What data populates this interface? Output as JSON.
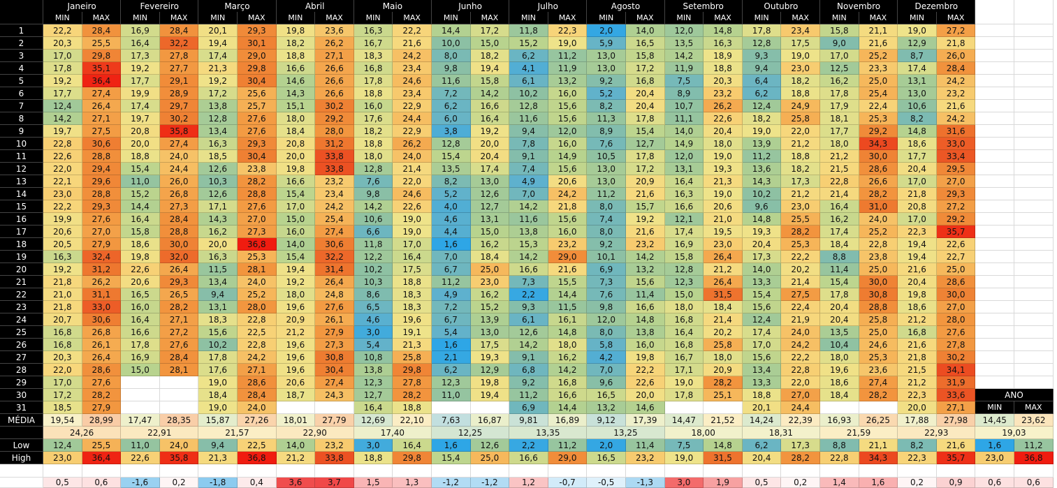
{
  "months": [
    "Janeiro",
    "Fevereiro",
    "Março",
    "Abril",
    "Maio",
    "Junho",
    "Julho",
    "Agosto",
    "Setembro",
    "Outubro",
    "Novembro",
    "Dezembro"
  ],
  "col_labels": [
    "MIN",
    "MAX"
  ],
  "rows": [
    {
      "day": "1",
      "values": [
        "22,2",
        "28,4",
        "16,9",
        "28,4",
        "20,1",
        "29,3",
        "19,8",
        "23,6",
        "16,3",
        "22,2",
        "14,4",
        "17,2",
        "11,8",
        "22,3",
        "2,0",
        "14,0",
        "12,0",
        "14,8",
        "17,8",
        "23,4",
        "15,8",
        "21,1",
        "19,0",
        "27,2"
      ]
    },
    {
      "day": "2",
      "values": [
        "20,3",
        "25,5",
        "16,4",
        "32,2",
        "19,4",
        "30,1",
        "18,2",
        "26,2",
        "16,7",
        "21,6",
        "10,0",
        "15,0",
        "15,2",
        "19,0",
        "5,9",
        "16,5",
        "13,5",
        "16,3",
        "12,8",
        "17,5",
        "9,0",
        "21,6",
        "12,9",
        "21,8"
      ]
    },
    {
      "day": "3",
      "values": [
        "17,0",
        "29,8",
        "17,3",
        "27,8",
        "17,4",
        "29,0",
        "18,8",
        "27,1",
        "18,3",
        "24,2",
        "8,0",
        "18,2",
        "6,2",
        "11,2",
        "13,0",
        "15,8",
        "14,2",
        "18,9",
        "9,3",
        "19,0",
        "17,0",
        "25,2",
        "8,7",
        "26,0"
      ]
    },
    {
      "day": "4",
      "values": [
        "17,8",
        "35,1",
        "19,2",
        "27,7",
        "21,3",
        "29,8",
        "16,6",
        "26,6",
        "16,8",
        "23,4",
        "9,8",
        "19,4",
        "4,1",
        "11,9",
        "13,0",
        "17,2",
        "11,9",
        "18,8",
        "9,4",
        "23,0",
        "12,5",
        "23,3",
        "17,4",
        "28,4"
      ]
    },
    {
      "day": "5",
      "values": [
        "19,2",
        "36,4",
        "17,7",
        "29,1",
        "19,2",
        "30,4",
        "14,6",
        "26,6",
        "17,8",
        "24,6",
        "11,6",
        "15,8",
        "6,1",
        "13,2",
        "9,2",
        "16,8",
        "7,5",
        "20,3",
        "6,4",
        "18,2",
        "16,2",
        "25,0",
        "13,1",
        "24,2"
      ]
    },
    {
      "day": "6",
      "values": [
        "17,7",
        "27,4",
        "19,9",
        "28,9",
        "17,2",
        "25,6",
        "14,3",
        "26,6",
        "18,8",
        "23,4",
        "7,2",
        "14,2",
        "10,2",
        "16,0",
        "5,2",
        "20,4",
        "8,9",
        "23,2",
        "6,2",
        "18,8",
        "17,8",
        "25,4",
        "13,0",
        "23,2"
      ]
    },
    {
      "day": "7",
      "values": [
        "12,4",
        "26,4",
        "17,4",
        "29,7",
        "13,8",
        "25,7",
        "15,1",
        "30,2",
        "16,0",
        "22,9",
        "6,2",
        "16,6",
        "12,8",
        "15,6",
        "8,2",
        "20,4",
        "10,7",
        "26,2",
        "12,4",
        "24,9",
        "17,9",
        "22,4",
        "10,6",
        "21,6"
      ]
    },
    {
      "day": "8",
      "values": [
        "14,2",
        "27,1",
        "19,7",
        "30,2",
        "12,8",
        "27,6",
        "18,0",
        "29,2",
        "17,6",
        "24,4",
        "6,0",
        "16,4",
        "11,6",
        "15,6",
        "11,3",
        "17,8",
        "11,1",
        "22,6",
        "18,2",
        "25,8",
        "18,1",
        "25,3",
        "8,2",
        "24,2"
      ]
    },
    {
      "day": "9",
      "values": [
        "19,7",
        "27,5",
        "20,8",
        "35,8",
        "13,4",
        "27,6",
        "18,4",
        "28,0",
        "18,2",
        "22,9",
        "3,8",
        "19,2",
        "9,4",
        "12,0",
        "8,9",
        "15,4",
        "14,0",
        "20,4",
        "19,0",
        "22,0",
        "17,7",
        "29,2",
        "14,8",
        "31,6"
      ]
    },
    {
      "day": "10",
      "values": [
        "22,8",
        "30,6",
        "20,0",
        "27,4",
        "16,3",
        "29,3",
        "20,8",
        "31,2",
        "18,8",
        "26,2",
        "12,8",
        "20,0",
        "7,8",
        "16,0",
        "7,6",
        "12,7",
        "14,9",
        "18,0",
        "13,9",
        "21,2",
        "18,0",
        "34,3",
        "18,6",
        "33,0"
      ]
    },
    {
      "day": "11",
      "values": [
        "22,6",
        "28,8",
        "18,8",
        "24,0",
        "18,5",
        "30,4",
        "20,0",
        "33,8",
        "18,0",
        "24,0",
        "15,4",
        "20,4",
        "9,1",
        "14,9",
        "10,5",
        "17,8",
        "12,0",
        "19,0",
        "11,2",
        "18,8",
        "21,2",
        "30,0",
        "17,7",
        "33,4"
      ]
    },
    {
      "day": "12",
      "values": [
        "22,0",
        "29,4",
        "15,4",
        "24,4",
        "12,6",
        "23,8",
        "19,8",
        "33,8",
        "12,8",
        "21,4",
        "13,5",
        "17,4",
        "7,4",
        "15,6",
        "13,0",
        "17,2",
        "13,1",
        "19,3",
        "13,6",
        "18,2",
        "21,5",
        "28,6",
        "20,4",
        "29,5"
      ]
    },
    {
      "day": "13",
      "values": [
        "22,1",
        "29,6",
        "11,0",
        "26,0",
        "10,3",
        "28,2",
        "16,6",
        "23,2",
        "7,6",
        "22,0",
        "8,2",
        "13,0",
        "4,9",
        "20,6",
        "13,0",
        "20,9",
        "16,4",
        "21,3",
        "14,3",
        "17,3",
        "22,8",
        "26,6",
        "17,0",
        "27,0"
      ]
    },
    {
      "day": "14",
      "values": [
        "23,0",
        "28,8",
        "15,2",
        "26,8",
        "12,6",
        "28,8",
        "15,4",
        "23,4",
        "9,8",
        "24,6",
        "5,2",
        "12,6",
        "7,0",
        "24,2",
        "11,2",
        "21,6",
        "16,3",
        "19,0",
        "10,2",
        "21,2",
        "21,4",
        "28,2",
        "21,8",
        "29,3"
      ]
    },
    {
      "day": "15",
      "values": [
        "22,2",
        "29,3",
        "14,4",
        "27,3",
        "17,1",
        "27,6",
        "17,0",
        "24,2",
        "14,2",
        "22,6",
        "4,0",
        "12,7",
        "14,2",
        "21,8",
        "8,0",
        "15,7",
        "16,6",
        "20,6",
        "9,6",
        "23,0",
        "16,4",
        "31,0",
        "20,8",
        "27,2"
      ]
    },
    {
      "day": "16",
      "values": [
        "19,9",
        "27,6",
        "16,4",
        "28,4",
        "14,3",
        "27,0",
        "15,0",
        "25,4",
        "10,6",
        "19,0",
        "4,6",
        "13,1",
        "11,6",
        "15,6",
        "7,4",
        "19,2",
        "12,1",
        "21,0",
        "14,8",
        "25,5",
        "16,2",
        "24,0",
        "17,0",
        "29,2"
      ]
    },
    {
      "day": "17",
      "values": [
        "20,6",
        "27,0",
        "15,8",
        "28,8",
        "16,2",
        "27,3",
        "16,0",
        "27,4",
        "6,6",
        "19,0",
        "4,4",
        "15,0",
        "13,8",
        "16,0",
        "8,0",
        "21,6",
        "17,4",
        "19,5",
        "19,3",
        "28,2",
        "17,4",
        "25,2",
        "22,3",
        "35,7"
      ]
    },
    {
      "day": "18",
      "values": [
        "20,5",
        "27,9",
        "18,6",
        "30,0",
        "20,0",
        "36,8",
        "14,0",
        "30,6",
        "11,8",
        "17,0",
        "1,6",
        "16,2",
        "15,3",
        "23,2",
        "9,2",
        "23,2",
        "16,9",
        "23,0",
        "20,4",
        "25,3",
        "18,4",
        "22,8",
        "19,4",
        "22,6"
      ]
    },
    {
      "day": "19",
      "values": [
        "16,3",
        "32,4",
        "19,8",
        "32,0",
        "16,3",
        "25,3",
        "15,4",
        "32,2",
        "12,2",
        "16,4",
        "7,0",
        "18,4",
        "14,2",
        "29,0",
        "10,1",
        "14,2",
        "15,8",
        "26,4",
        "17,3",
        "22,2",
        "8,8",
        "23,8",
        "19,4",
        "22,7"
      ]
    },
    {
      "day": "20",
      "values": [
        "19,2",
        "31,2",
        "22,6",
        "26,4",
        "11,5",
        "28,1",
        "19,4",
        "31,4",
        "10,2",
        "17,5",
        "6,7",
        "25,0",
        "16,6",
        "21,6",
        "6,9",
        "13,2",
        "12,8",
        "21,2",
        "14,0",
        "20,2",
        "11,4",
        "25,0",
        "21,6",
        "25,0"
      ]
    },
    {
      "day": "21",
      "values": [
        "21,8",
        "26,2",
        "20,6",
        "29,3",
        "13,4",
        "24,0",
        "19,2",
        "26,4",
        "10,3",
        "18,8",
        "11,2",
        "23,0",
        "7,3",
        "15,5",
        "7,3",
        "15,6",
        "12,3",
        "26,4",
        "13,3",
        "21,4",
        "15,4",
        "30,0",
        "20,4",
        "28,6"
      ]
    },
    {
      "day": "22",
      "values": [
        "21,0",
        "31,1",
        "16,5",
        "26,5",
        "9,4",
        "25,2",
        "18,0",
        "24,8",
        "8,6",
        "18,3",
        "4,9",
        "16,2",
        "2,2",
        "14,4",
        "7,6",
        "11,4",
        "15,0",
        "31,5",
        "15,4",
        "27,5",
        "17,8",
        "30,8",
        "19,8",
        "30,0"
      ]
    },
    {
      "day": "23",
      "values": [
        "21,8",
        "33,0",
        "16,0",
        "28,2",
        "13,1",
        "28,0",
        "19,6",
        "27,6",
        "6,5",
        "18,3",
        "7,2",
        "15,2",
        "9,3",
        "11,5",
        "9,8",
        "16,6",
        "18,0",
        "18,4",
        "15,6",
        "22,4",
        "20,4",
        "28,8",
        "18,6",
        "27,0"
      ]
    },
    {
      "day": "24",
      "values": [
        "20,7",
        "30,6",
        "16,4",
        "27,1",
        "18,3",
        "22,8",
        "20,9",
        "26,1",
        "4,6",
        "19,6",
        "6,7",
        "13,9",
        "6,1",
        "16,1",
        "12,0",
        "14,8",
        "16,8",
        "21,4",
        "12,4",
        "21,9",
        "20,4",
        "25,8",
        "21,2",
        "28,0"
      ]
    },
    {
      "day": "25",
      "values": [
        "16,8",
        "26,8",
        "16,6",
        "27,2",
        "15,6",
        "22,5",
        "21,2",
        "27,9",
        "3,0",
        "19,1",
        "5,4",
        "13,0",
        "12,6",
        "14,8",
        "8,0",
        "13,8",
        "16,4",
        "20,2",
        "17,4",
        "24,0",
        "13,5",
        "25,0",
        "16,8",
        "27,6"
      ]
    },
    {
      "day": "26",
      "values": [
        "16,8",
        "26,1",
        "17,8",
        "27,6",
        "10,2",
        "22,8",
        "19,6",
        "27,3",
        "5,4",
        "21,3",
        "1,6",
        "17,5",
        "14,2",
        "18,0",
        "5,8",
        "16,0",
        "16,8",
        "25,8",
        "17,0",
        "24,2",
        "10,4",
        "24,6",
        "21,6",
        "27,8"
      ]
    },
    {
      "day": "27",
      "values": [
        "20,3",
        "26,4",
        "16,9",
        "28,4",
        "17,8",
        "24,2",
        "19,6",
        "30,8",
        "10,8",
        "25,8",
        "2,1",
        "19,3",
        "9,1",
        "16,2",
        "4,2",
        "19,8",
        "16,7",
        "18,0",
        "15,6",
        "22,2",
        "18,0",
        "25,3",
        "21,8",
        "30,2"
      ]
    },
    {
      "day": "28",
      "values": [
        "22,0",
        "28,6",
        "15,0",
        "28,1",
        "17,6",
        "27,1",
        "19,6",
        "30,4",
        "13,8",
        "29,8",
        "6,2",
        "12,9",
        "6,8",
        "14,2",
        "7,0",
        "22,2",
        "17,1",
        "20,9",
        "13,4",
        "22,8",
        "19,6",
        "23,6",
        "21,5",
        "34,1"
      ]
    },
    {
      "day": "29",
      "values": [
        "17,0",
        "27,6",
        null,
        null,
        "19,0",
        "28,6",
        "20,6",
        "27,4",
        "12,3",
        "27,8",
        "12,3",
        "19,8",
        "9,2",
        "16,8",
        "9,6",
        "22,6",
        "19,0",
        "28,2",
        "13,3",
        "22,0",
        "18,6",
        "27,4",
        "21,2",
        "31,9"
      ]
    },
    {
      "day": "30",
      "values": [
        "17,2",
        "28,2",
        null,
        null,
        "18,4",
        "28,4",
        "18,7",
        "24,3",
        "12,7",
        "28,2",
        "11,0",
        "19,4",
        "11,2",
        "16,6",
        "16,5",
        "20,0",
        "17,8",
        "25,1",
        "18,8",
        "27,0",
        "18,4",
        "28,2",
        "22,3",
        "33,6"
      ]
    },
    {
      "day": "31",
      "values": [
        "18,5",
        "27,9",
        null,
        null,
        "19,0",
        "24,0",
        null,
        null,
        "16,4",
        "18,8",
        null,
        null,
        "6,9",
        "14,4",
        "13,2",
        "14,6",
        null,
        null,
        "20,1",
        "24,4",
        null,
        null,
        "20,0",
        "27,1"
      ]
    }
  ],
  "media": {
    "label": "MÉDIA",
    "values": [
      "19,54",
      "28,99",
      "17,47",
      "28,35",
      "15,87",
      "27,26",
      "18,01",
      "27,79",
      "12,69",
      "22,10",
      "7,63",
      "16,87",
      "9,81",
      "16,89",
      "9,12",
      "17,39",
      "14,47",
      "21,52",
      "14,24",
      "22,39",
      "16,93",
      "26,25",
      "17,88",
      "27,98"
    ]
  },
  "average": {
    "values": [
      "24,26",
      "22,91",
      "21,57",
      "22,90",
      "17,40",
      "12,25",
      "13,35",
      "13,25",
      "18,00",
      "18,31",
      "21,59",
      "22,93"
    ]
  },
  "low": {
    "label": "Low",
    "values": [
      "12,4",
      "25,5",
      "11,0",
      "24,0",
      "9,4",
      "22,5",
      "14,0",
      "23,2",
      "3,0",
      "16,4",
      "1,6",
      "12,6",
      "2,2",
      "11,2",
      "2,0",
      "11,4",
      "7,5",
      "14,8",
      "6,2",
      "17,3",
      "8,8",
      "21,1",
      "8,2",
      "21,6"
    ]
  },
  "high": {
    "label": "High",
    "values": [
      "23,0",
      "36,4",
      "22,6",
      "35,8",
      "21,3",
      "36,8",
      "21,2",
      "33,8",
      "18,8",
      "29,8",
      "15,4",
      "25,0",
      "16,6",
      "29,0",
      "16,5",
      "23,2",
      "19,0",
      "31,5",
      "20,4",
      "28,2",
      "22,8",
      "34,3",
      "22,3",
      "35,7"
    ]
  },
  "diff": {
    "values": [
      "0,5",
      "0,6",
      "-1,6",
      "0,2",
      "-1,8",
      "0,4",
      "3,6",
      "3,7",
      "1,5",
      "1,3",
      "-1,2",
      "-1,2",
      "1,2",
      "-0,7",
      "-0,5",
      "-1,3",
      "3,0",
      "1,9",
      "0,5",
      "0,2",
      "1,4",
      "1,6",
      "0,2",
      "0,9"
    ]
  },
  "ano": {
    "title": "ANO",
    "col_labels": [
      "MIN",
      "MAX"
    ],
    "media": [
      "14,45",
      "23,62"
    ],
    "average": "19,03",
    "low": [
      "1,6",
      "11,2"
    ],
    "high": [
      "23,0",
      "36,8"
    ],
    "diff": [
      "0,6",
      "0,6"
    ]
  }
}
